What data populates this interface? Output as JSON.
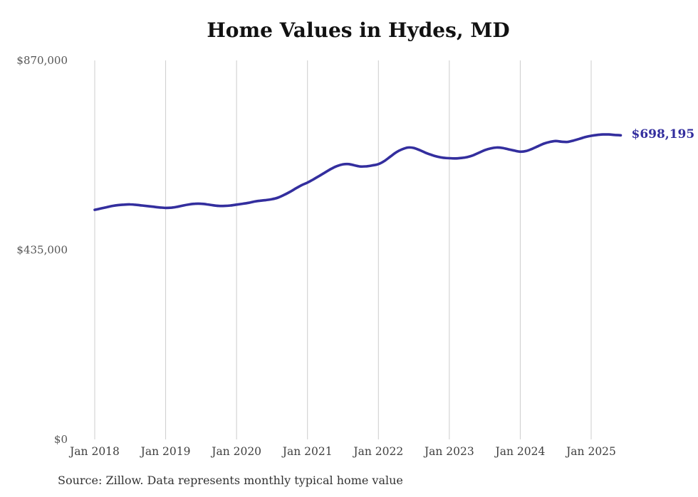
{
  "title": "Home Values in Hydes, MD",
  "source_note": "Source: Zillow. Data represents monthly typical home value",
  "colors": {
    "line": "#332e9e",
    "end_label": "#332e9e",
    "grid": "#cccccc",
    "title": "#111111",
    "y_tick": "#555555",
    "x_tick": "#3f3f3f",
    "source": "#333333",
    "background": "#ffffff"
  },
  "chart_data": {
    "type": "line",
    "title": "Home Values in Hydes, MD",
    "xlabel": "",
    "ylabel": "",
    "ylim": [
      0,
      870000
    ],
    "grid": "vertical-only",
    "legend": "none",
    "x_start_month": "2018-01",
    "x_frequency": "monthly",
    "x_tick_labels": [
      "Jan 2018",
      "Jan 2019",
      "Jan 2020",
      "Jan 2021",
      "Jan 2022",
      "Jan 2023",
      "Jan 2024",
      "Jan 2025"
    ],
    "y_ticks": [
      {
        "label": "$0",
        "value": 0
      },
      {
        "label": "$435,000",
        "value": 435000
      },
      {
        "label": "$870,000",
        "value": 870000
      }
    ],
    "end_value": 698195,
    "end_value_label": "$698,195",
    "series": [
      {
        "name": "Typical home value",
        "monthly_values": [
          527000,
          530000,
          533000,
          536000,
          538000,
          539000,
          539500,
          538500,
          537000,
          535500,
          534000,
          532500,
          531500,
          532000,
          534000,
          537000,
          539500,
          541000,
          541000,
          539500,
          537500,
          536000,
          536000,
          537000,
          539000,
          541000,
          543000,
          546000,
          548000,
          549500,
          551500,
          555000,
          561000,
          568000,
          576000,
          583500,
          589500,
          597000,
          605000,
          613000,
          621000,
          627500,
          631500,
          632000,
          629000,
          626500,
          627000,
          629000,
          632000,
          639000,
          649000,
          659000,
          666000,
          670000,
          669000,
          664000,
          658000,
          653000,
          649000,
          646500,
          645500,
          645000,
          646000,
          648000,
          652000,
          658000,
          664000,
          668000,
          670000,
          669000,
          666000,
          663000,
          660500,
          662000,
          667000,
          673000,
          679000,
          683000,
          685000,
          683500,
          683000,
          686000,
          690000,
          694000,
          697000,
          699000,
          700000,
          700000,
          699000,
          698195
        ]
      }
    ]
  }
}
